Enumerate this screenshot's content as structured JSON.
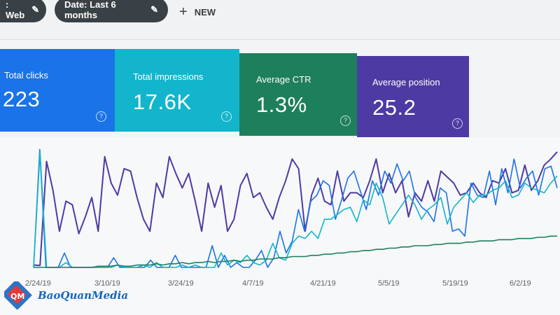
{
  "filters": {
    "web_chip": ": Web",
    "date_chip": "Date: Last 6 months",
    "new_label": "NEW"
  },
  "cards": [
    {
      "id": "clicks",
      "label": "Total clicks",
      "value": "223",
      "color": "#1a73e8"
    },
    {
      "id": "impressions",
      "label": "Total impressions",
      "value": "17.6K",
      "color": "#12b5cb"
    },
    {
      "id": "ctr",
      "label": "Average CTR",
      "value": "1.3%",
      "color": "#1e7f5c"
    },
    {
      "id": "position",
      "label": "Average position",
      "value": "25.2",
      "color": "#4e3aa3"
    }
  ],
  "help_glyph": "?",
  "chart_data": {
    "type": "line",
    "x_ticks": [
      "2/24/19",
      "3/10/19",
      "3/24/19",
      "4/7/19",
      "4/21/19",
      "5/5/19",
      "5/19/19",
      "6/2/19"
    ],
    "series": [
      {
        "color": "#4e3aa3",
        "values": [
          2,
          1.6,
          88,
          64,
          30,
          55,
          52,
          28,
          42,
          58,
          30,
          92,
          70,
          60,
          82,
          80,
          58,
          40,
          30,
          70,
          58,
          92,
          78,
          66,
          78,
          55,
          30,
          70,
          50,
          68,
          30,
          40,
          68,
          78,
          58,
          62,
          50,
          40,
          58,
          72,
          90,
          82,
          30,
          60,
          74,
          55,
          52,
          80,
          55,
          62,
          62,
          58,
          72,
          90,
          62,
          78,
          62,
          72,
          42,
          62,
          55,
          72,
          55,
          80,
          75,
          70,
          60,
          62,
          70,
          62,
          58,
          72,
          70,
          82,
          62,
          64,
          85,
          64,
          72,
          85,
          90,
          96
        ]
      },
      {
        "color": "#1a73e8",
        "values": [
          0,
          98,
          0,
          0,
          0,
          12,
          0,
          0,
          0,
          0,
          0,
          0,
          0,
          8,
          0,
          0,
          0,
          0,
          0,
          6,
          0,
          0,
          0,
          10,
          0,
          0,
          0,
          0,
          0,
          18,
          0,
          10,
          0,
          4,
          0,
          0,
          6,
          14,
          0,
          8,
          30,
          12,
          22,
          48,
          30,
          55,
          60,
          72,
          68,
          40,
          56,
          74,
          80,
          64,
          48,
          72,
          60,
          80,
          70,
          86,
          72,
          80,
          58,
          50,
          46,
          38,
          66,
          62,
          30,
          32,
          26,
          70,
          60,
          58,
          80,
          52,
          82,
          62,
          90,
          66,
          74,
          80,
          60,
          82,
          84,
          66
        ]
      },
      {
        "color": "#12b5cb",
        "values": [
          0,
          96,
          0,
          0,
          0,
          4,
          0,
          0,
          0,
          0,
          0,
          0,
          0,
          2,
          0,
          0,
          0,
          2,
          0,
          4,
          0,
          0,
          0,
          2,
          0,
          2,
          0,
          0,
          0,
          12,
          2,
          6,
          4,
          10,
          4,
          2,
          6,
          20,
          8,
          6,
          20,
          26,
          24,
          30,
          24,
          40,
          40,
          44,
          48,
          50,
          38,
          56,
          52,
          70,
          58,
          36,
          44,
          52,
          60,
          52,
          40,
          48,
          52,
          58,
          36,
          50,
          56,
          62,
          54,
          60,
          60,
          64,
          66,
          72,
          58,
          60,
          70,
          66,
          64,
          62,
          70,
          76
        ]
      },
      {
        "color": "#1e7f5c",
        "values": [
          0,
          0,
          0,
          0,
          0,
          0,
          0,
          0,
          0,
          0,
          1,
          1,
          1,
          2,
          1,
          1,
          2,
          2,
          2,
          3,
          2,
          3,
          3,
          4,
          3,
          4,
          4,
          5,
          4,
          5,
          5,
          6,
          5,
          6,
          6,
          7,
          7,
          7,
          8,
          8,
          9,
          9,
          9,
          10,
          10,
          11,
          11,
          12,
          12,
          13,
          13,
          14,
          14,
          15,
          15,
          16,
          16,
          17,
          17,
          18,
          18,
          18,
          19,
          19,
          20,
          20,
          20,
          21,
          21,
          22,
          22,
          22,
          23,
          23,
          23,
          24,
          24,
          24,
          25,
          25,
          26,
          26
        ]
      }
    ]
  },
  "watermark": {
    "text": "BaoQuanMedia",
    "logo_text": "QM"
  }
}
